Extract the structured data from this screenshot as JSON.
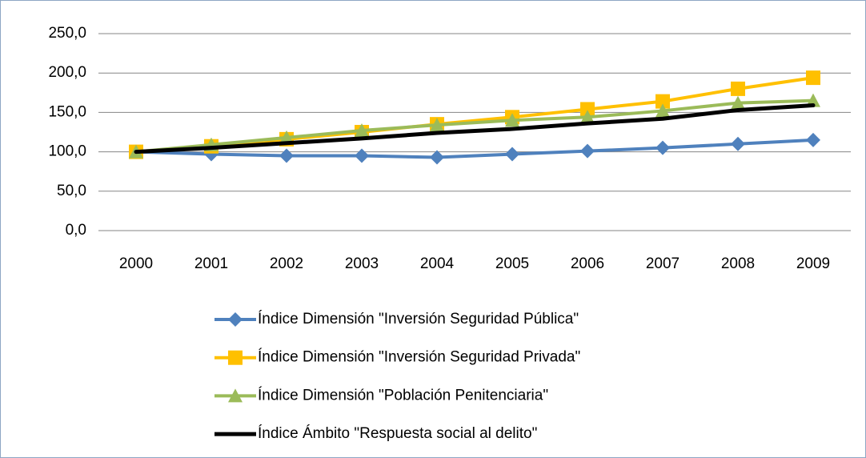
{
  "chart_data": {
    "type": "line",
    "categories": [
      "2000",
      "2001",
      "2002",
      "2003",
      "2004",
      "2005",
      "2006",
      "2007",
      "2008",
      "2009"
    ],
    "series": [
      {
        "name": "Índice Dimensión \"Inversión Seguridad Pública\"",
        "color": "#4f81bd",
        "marker": "diamond",
        "values": [
          100,
          97,
          95,
          95,
          93,
          97,
          101,
          105,
          110,
          115
        ]
      },
      {
        "name": "Índice Dimensión \"Inversión Seguridad Privada\"",
        "color": "#ffc000",
        "marker": "square",
        "values": [
          100,
          107,
          116,
          125,
          135,
          144,
          154,
          164,
          180,
          194
        ]
      },
      {
        "name": "Índice Dimensión \"Población Penitenciaria\"",
        "color": "#9bbb59",
        "marker": "triangle",
        "values": [
          100,
          109,
          118,
          127,
          134,
          140,
          144,
          152,
          162,
          165
        ]
      },
      {
        "name": "Índice Ámbito \"Respuesta social al delito\"",
        "color": "#000000",
        "marker": "none",
        "values": [
          100,
          105,
          111,
          117,
          124,
          129,
          136,
          142,
          153,
          159
        ]
      }
    ],
    "ylim": [
      0,
      250
    ],
    "yticks": [
      {
        "value": 0,
        "label": "0,0"
      },
      {
        "value": 50,
        "label": "50,0"
      },
      {
        "value": 100,
        "label": "100,0"
      },
      {
        "value": 150,
        "label": "150,0"
      },
      {
        "value": 200,
        "label": "200,0"
      },
      {
        "value": 250,
        "label": "250,0"
      }
    ],
    "grid": true,
    "legend": "bottom"
  }
}
